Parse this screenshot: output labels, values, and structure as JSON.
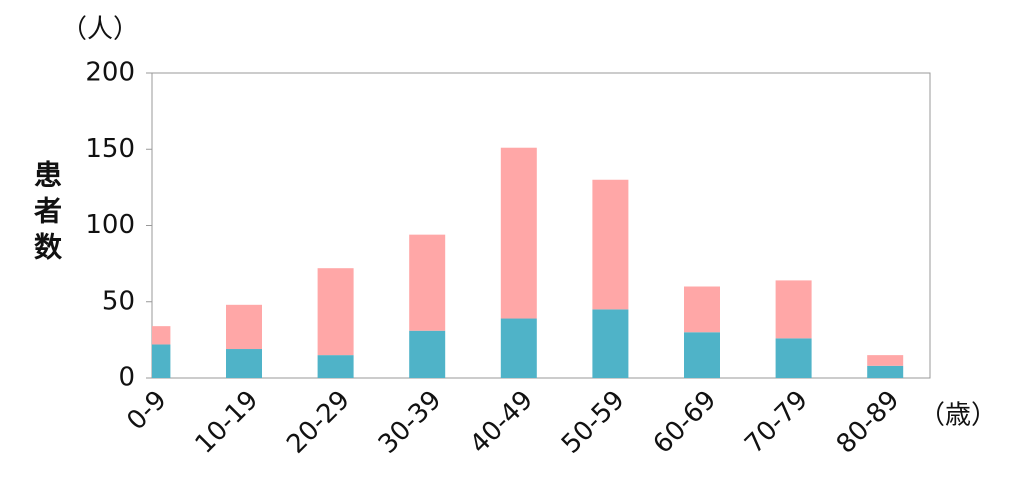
{
  "chart_data": {
    "type": "stacked_bar",
    "y_unit": "（人）",
    "y_label": "患者数",
    "x_unit": "（歳）",
    "categories": [
      "0-9",
      "10-19",
      "20-29",
      "30-39",
      "40-49",
      "50-59",
      "60-69",
      "70-79",
      "80-89"
    ],
    "series": [
      {
        "color": "#4fb3c8",
        "values": [
          22,
          19,
          15,
          31,
          39,
          45,
          30,
          26,
          8
        ]
      },
      {
        "color": "#ffa7a7",
        "values": [
          12,
          29,
          57,
          63,
          112,
          85,
          30,
          38,
          7
        ]
      }
    ],
    "ylim": [
      0,
      200
    ],
    "yticks": [
      0,
      50,
      100,
      150,
      200
    ],
    "grid": false
  }
}
